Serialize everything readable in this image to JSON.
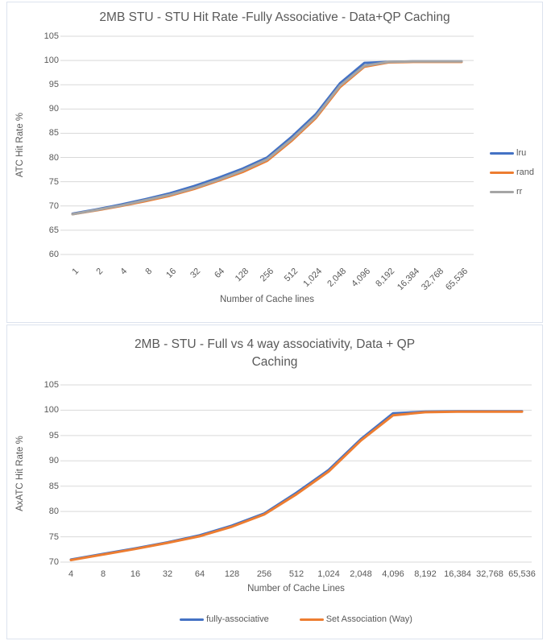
{
  "chart_data": [
    {
      "type": "line",
      "title": "2MB STU - STU Hit Rate -Fully Associative - Data+QP Caching",
      "xlabel": "Number of Cache lines",
      "ylabel": "ATC Hit Rate %",
      "ylim": [
        60,
        105
      ],
      "y_ticks": [
        105,
        100,
        95,
        90,
        85,
        80,
        75,
        70,
        65,
        60
      ],
      "grid": true,
      "legend_position": "right",
      "x_tick_rotation": 45,
      "categories": [
        "1",
        "2",
        "4",
        "8",
        "16",
        "32",
        "64",
        "128",
        "256",
        "512",
        "1,024",
        "2,048",
        "4,096",
        "8,192",
        "16,384",
        "32,768",
        "65,536"
      ],
      "series": [
        {
          "name": "lru",
          "color": "#4472C4",
          "values": [
            68.4,
            69.3,
            70.3,
            71.4,
            72.6,
            74.1,
            75.8,
            77.7,
            80.0,
            84.2,
            88.9,
            95.3,
            99.5,
            99.7,
            99.8,
            99.8,
            99.8
          ]
        },
        {
          "name": "rand",
          "color": "#ED7D31",
          "values": [
            68.3,
            69.1,
            70.0,
            71.0,
            72.1,
            73.5,
            75.2,
            77.0,
            79.3,
            83.4,
            88.1,
            94.5,
            98.7,
            99.6,
            99.7,
            99.7,
            99.7
          ]
        },
        {
          "name": "rr",
          "color": "#A5A5A5",
          "values": [
            68.3,
            69.2,
            70.1,
            71.2,
            72.3,
            73.7,
            75.4,
            77.3,
            79.6,
            83.7,
            88.4,
            94.8,
            98.9,
            99.7,
            99.8,
            99.8,
            99.8
          ]
        }
      ]
    },
    {
      "type": "line",
      "title": "2MB - STU - Full vs 4 way associativity, Data + QP Caching",
      "title_lines": [
        "2MB - STU - Full vs 4 way associativity, Data + QP",
        "Caching"
      ],
      "xlabel": "Number of Cache Lines",
      "ylabel": "AxATC Hit Rate %",
      "ylim": [
        70,
        105
      ],
      "y_ticks": [
        105,
        100,
        95,
        90,
        85,
        80,
        75,
        70
      ],
      "grid": true,
      "legend_position": "bottom",
      "x_tick_rotation": 0,
      "categories": [
        "4",
        "8",
        "16",
        "32",
        "64",
        "128",
        "256",
        "512",
        "1,024",
        "2,048",
        "4,096",
        "8,192",
        "16,384",
        "32,768",
        "65,536"
      ],
      "series": [
        {
          "name": "fully-associative",
          "color": "#4472C4",
          "values": [
            70.5,
            71.6,
            72.7,
            73.9,
            75.3,
            77.2,
            79.6,
            83.7,
            88.2,
            94.3,
            99.4,
            99.7,
            99.8,
            99.8,
            99.8
          ]
        },
        {
          "name": "Set Association (Way)",
          "color": "#ED7D31",
          "values": [
            70.4,
            71.5,
            72.6,
            73.8,
            75.1,
            77.0,
            79.4,
            83.4,
            87.9,
            94.0,
            99.0,
            99.6,
            99.7,
            99.7,
            99.7
          ]
        }
      ]
    }
  ],
  "colors": {
    "series_blue": "#4472C4",
    "series_orange": "#ED7D31",
    "series_gray": "#A5A5A5",
    "text": "#595959",
    "gridline": "#D9D9D9",
    "panel_border": "#DCE3EE"
  }
}
